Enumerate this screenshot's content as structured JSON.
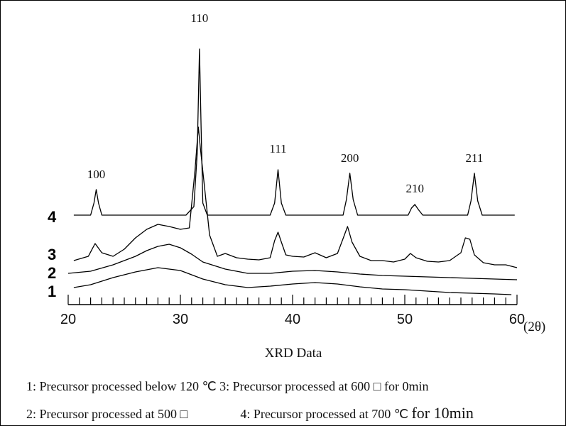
{
  "chart_data": {
    "type": "line",
    "xlabel": "XRD Data",
    "x_unit": "(2θ)",
    "xlim": [
      20,
      60
    ],
    "x_ticks": [
      20,
      30,
      40,
      50,
      60
    ],
    "series": [
      {
        "name": "1",
        "color": "#000000",
        "points": [
          [
            20.5,
            404
          ],
          [
            22,
            400
          ],
          [
            24,
            390
          ],
          [
            26,
            382
          ],
          [
            28,
            376
          ],
          [
            30,
            380
          ],
          [
            32,
            392
          ],
          [
            34,
            400
          ],
          [
            36,
            404
          ],
          [
            38,
            402
          ],
          [
            40,
            399
          ],
          [
            42,
            397
          ],
          [
            44,
            399
          ],
          [
            46,
            403
          ],
          [
            48,
            406
          ],
          [
            50,
            407
          ],
          [
            52,
            409
          ],
          [
            54,
            411
          ],
          [
            56,
            412
          ],
          [
            58,
            413
          ],
          [
            59.5,
            414
          ]
        ]
      },
      {
        "name": "2",
        "color": "#000000",
        "points": [
          [
            20,
            384
          ],
          [
            22,
            381
          ],
          [
            24,
            372
          ],
          [
            26,
            360
          ],
          [
            27,
            352
          ],
          [
            28,
            346
          ],
          [
            29,
            343
          ],
          [
            30,
            348
          ],
          [
            31,
            357
          ],
          [
            32,
            368
          ],
          [
            34,
            378
          ],
          [
            36,
            384
          ],
          [
            38,
            384
          ],
          [
            40,
            381
          ],
          [
            42,
            380
          ],
          [
            44,
            382
          ],
          [
            46,
            385
          ],
          [
            48,
            387
          ],
          [
            50,
            388
          ],
          [
            52,
            389
          ],
          [
            54,
            390
          ],
          [
            56,
            391
          ],
          [
            58,
            392
          ],
          [
            60,
            393
          ]
        ]
      },
      {
        "name": "3",
        "color": "#000000",
        "points": [
          [
            20.5,
            366
          ],
          [
            21.8,
            360
          ],
          [
            22.4,
            342
          ],
          [
            23,
            355
          ],
          [
            24,
            360
          ],
          [
            25,
            350
          ],
          [
            26,
            334
          ],
          [
            27,
            322
          ],
          [
            28,
            315
          ],
          [
            29,
            318
          ],
          [
            30,
            322
          ],
          [
            30.8,
            320
          ],
          [
            31.3,
            240
          ],
          [
            31.6,
            178
          ],
          [
            31.8,
            210
          ],
          [
            32.1,
            255
          ],
          [
            32.6,
            330
          ],
          [
            33.3,
            360
          ],
          [
            34,
            356
          ],
          [
            35,
            362
          ],
          [
            36,
            364
          ],
          [
            37,
            365
          ],
          [
            38,
            362
          ],
          [
            38.4,
            338
          ],
          [
            38.7,
            326
          ],
          [
            39,
            340
          ],
          [
            39.4,
            358
          ],
          [
            40,
            360
          ],
          [
            41,
            361
          ],
          [
            42,
            355
          ],
          [
            43,
            362
          ],
          [
            44,
            356
          ],
          [
            44.5,
            335
          ],
          [
            44.9,
            318
          ],
          [
            45.3,
            340
          ],
          [
            46,
            360
          ],
          [
            47,
            366
          ],
          [
            48,
            366
          ],
          [
            49,
            368
          ],
          [
            50,
            364
          ],
          [
            50.5,
            356
          ],
          [
            51,
            362
          ],
          [
            52,
            367
          ],
          [
            53,
            368
          ],
          [
            54,
            366
          ],
          [
            55,
            355
          ],
          [
            55.4,
            334
          ],
          [
            55.8,
            336
          ],
          [
            56.2,
            358
          ],
          [
            57,
            369
          ],
          [
            58,
            372
          ],
          [
            59,
            372
          ],
          [
            60,
            376
          ]
        ]
      },
      {
        "name": "4",
        "color": "#000000",
        "points": [
          [
            20.5,
            302
          ],
          [
            22,
            302
          ],
          [
            22.3,
            285
          ],
          [
            22.5,
            266
          ],
          [
            22.7,
            285
          ],
          [
            23,
            302
          ],
          [
            25,
            302
          ],
          [
            27,
            302
          ],
          [
            29,
            302
          ],
          [
            30.5,
            302
          ],
          [
            31.2,
            290
          ],
          [
            31.5,
            215
          ],
          [
            31.7,
            68
          ],
          [
            31.85,
            180
          ],
          [
            32,
            285
          ],
          [
            32.4,
            302
          ],
          [
            34,
            302
          ],
          [
            36,
            302
          ],
          [
            38,
            302
          ],
          [
            38.4,
            285
          ],
          [
            38.7,
            238
          ],
          [
            39,
            285
          ],
          [
            39.4,
            302
          ],
          [
            42,
            302
          ],
          [
            44.5,
            302
          ],
          [
            44.8,
            280
          ],
          [
            45.1,
            243
          ],
          [
            45.4,
            280
          ],
          [
            45.8,
            302
          ],
          [
            48,
            302
          ],
          [
            50.3,
            302
          ],
          [
            50.6,
            292
          ],
          [
            50.9,
            287
          ],
          [
            51.2,
            294
          ],
          [
            51.6,
            302
          ],
          [
            54,
            302
          ],
          [
            55.6,
            302
          ],
          [
            55.9,
            282
          ],
          [
            56.2,
            243
          ],
          [
            56.5,
            282
          ],
          [
            56.9,
            302
          ],
          [
            58,
            302
          ],
          [
            59.8,
            302
          ]
        ]
      }
    ],
    "curve_labels": [
      "4",
      "3",
      "2",
      "1"
    ],
    "peak_labels": [
      {
        "text": "100",
        "x": 22.5
      },
      {
        "text": "110",
        "x": 31.7
      },
      {
        "text": "111",
        "x": 38.7
      },
      {
        "text": "200",
        "x": 45.1
      },
      {
        "text": "210",
        "x": 50.9
      },
      {
        "text": "211",
        "x": 56.2
      }
    ]
  },
  "legend": {
    "row1": "1: Precursor processed below 120 ℃ 3: Precursor processed at 600 □ for 0min",
    "row2_a": "2: Precursor processed at 500 □",
    "row2_b": "4: Precursor processed at 700 ℃ ",
    "row2_c": "for 10min"
  }
}
